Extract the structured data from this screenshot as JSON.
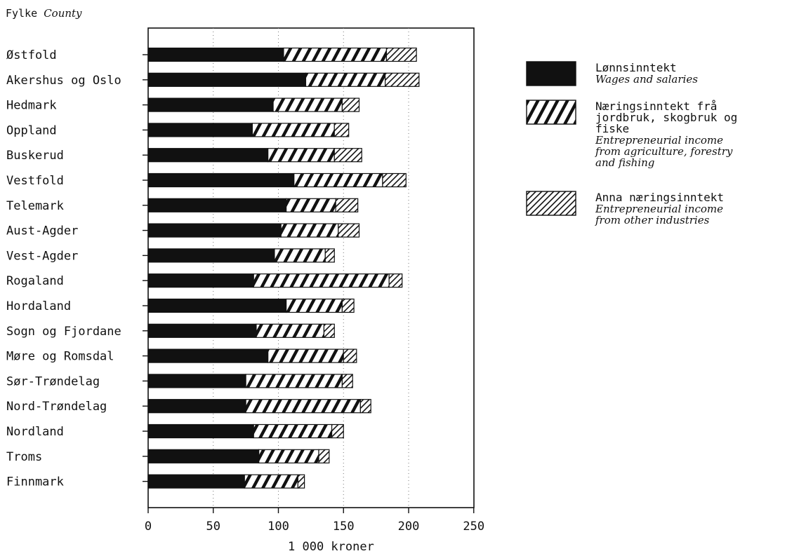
{
  "chart_data": {
    "type": "bar",
    "stacked": true,
    "orientation": "horizontal",
    "y_title_main": "Fylke",
    "y_title_sub": "County",
    "xlabel": "1 000 kroner",
    "xlim": [
      0,
      250
    ],
    "xticks": [
      0,
      50,
      100,
      150,
      200,
      250
    ],
    "grid": "vertical dotted",
    "legend_position": "right",
    "categories": [
      "Østfold",
      "Akershus og Oslo",
      "Hedmark",
      "Oppland",
      "Buskerud",
      "Vestfold",
      "Telemark",
      "Aust-Agder",
      "Vest-Agder",
      "Rogaland",
      "Hordaland",
      "Sogn og Fjordane",
      "Møre og Romsdal",
      "Sør-Trøndelag",
      "Nord-Trøndelag",
      "Nordland",
      "Troms",
      "Finnmark"
    ],
    "series": [
      {
        "key": "wages",
        "name": "Lønnsinntekt",
        "name_en": "Wages and salaries",
        "pattern": "solid",
        "values": [
          104,
          121,
          96,
          80,
          92,
          112,
          106,
          102,
          97,
          81,
          106,
          83,
          92,
          75,
          75,
          81,
          85,
          74
        ]
      },
      {
        "key": "agri",
        "name": "Næringsinntekt frå jordbruk, skogbruk og fiske",
        "name_en": "Entrepreneurial income from agriculture, forestry and fishing",
        "pattern": "wide-diagonal",
        "values": [
          79,
          61,
          53,
          63,
          51,
          68,
          38,
          44,
          39,
          104,
          43,
          52,
          58,
          74,
          88,
          60,
          46,
          41
        ]
      },
      {
        "key": "other",
        "name": "Anna næringsinntekt",
        "name_en": "Entrepreneurial income from other industries",
        "pattern": "fine-diagonal",
        "values": [
          23,
          26,
          13,
          11,
          21,
          18,
          17,
          16,
          7,
          10,
          9,
          8,
          10,
          8,
          8,
          9,
          8,
          5
        ]
      }
    ]
  },
  "legend": [
    {
      "key": "wages",
      "lines": [
        "Lønnsinntekt"
      ],
      "sub": [
        "Wages and salaries"
      ]
    },
    {
      "key": "agri",
      "lines": [
        "Næringsinntekt frå",
        "jordbruk, skogbruk og",
        "fiske"
      ],
      "sub": [
        "Entrepreneurial income",
        "from agriculture, forestry",
        "and fishing"
      ]
    },
    {
      "key": "other",
      "lines": [
        "Anna næringsinntekt"
      ],
      "sub": [
        "Entrepreneurial income",
        "from other industries"
      ]
    }
  ]
}
